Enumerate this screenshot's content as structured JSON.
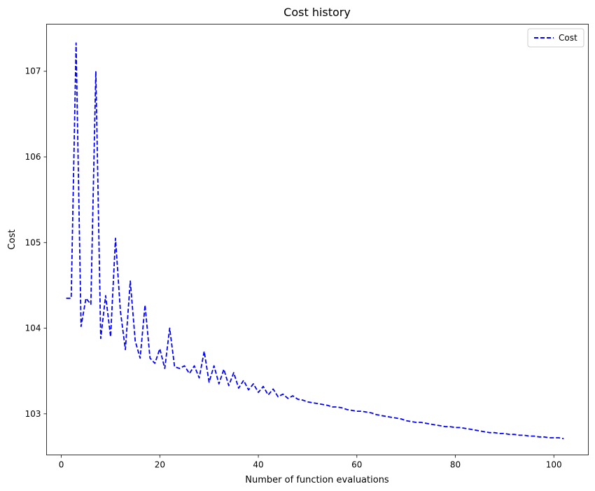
{
  "chart_data": {
    "type": "line",
    "title": "Cost history",
    "xlabel": "Number of function evaluations",
    "ylabel": "Cost",
    "xlim": [
      -3,
      107
    ],
    "ylim": [
      102.52,
      107.55
    ],
    "xticks": [
      0,
      20,
      40,
      60,
      80,
      100
    ],
    "yticks": [
      103,
      104,
      105,
      106,
      107
    ],
    "grid": false,
    "legend": {
      "placement": "top-right"
    },
    "series": [
      {
        "name": "Cost",
        "color": "#0000ff",
        "line_style": "dashed",
        "x": [
          1,
          2,
          3,
          4,
          5,
          6,
          7,
          8,
          9,
          10,
          11,
          12,
          13,
          14,
          15,
          16,
          17,
          18,
          19,
          20,
          21,
          22,
          23,
          24,
          25,
          26,
          27,
          28,
          29,
          30,
          31,
          32,
          33,
          34,
          35,
          36,
          37,
          38,
          39,
          40,
          41,
          42,
          43,
          44,
          45,
          46,
          47,
          48,
          49,
          50,
          51,
          52,
          53,
          54,
          55,
          56,
          57,
          58,
          59,
          60,
          61,
          62,
          63,
          64,
          65,
          66,
          67,
          68,
          69,
          70,
          71,
          72,
          73,
          74,
          75,
          76,
          77,
          78,
          79,
          80,
          81,
          82,
          83,
          84,
          85,
          86,
          87,
          88,
          89,
          90,
          91,
          92,
          93,
          94,
          95,
          96,
          97,
          98,
          99,
          100,
          101,
          102
        ],
        "y": [
          104.35,
          104.35,
          107.33,
          104.02,
          104.35,
          104.28,
          107.0,
          103.88,
          104.38,
          103.9,
          105.05,
          104.2,
          103.75,
          104.55,
          103.85,
          103.65,
          104.27,
          103.65,
          103.59,
          103.76,
          103.53,
          104.0,
          103.55,
          103.53,
          103.56,
          103.47,
          103.56,
          103.42,
          103.73,
          103.37,
          103.56,
          103.35,
          103.52,
          103.33,
          103.48,
          103.3,
          103.39,
          103.28,
          103.35,
          103.25,
          103.32,
          103.22,
          103.29,
          103.2,
          103.23,
          103.18,
          103.21,
          103.17,
          103.16,
          103.14,
          103.13,
          103.12,
          103.11,
          103.1,
          103.08,
          103.08,
          103.07,
          103.05,
          103.04,
          103.03,
          103.03,
          103.02,
          103.01,
          102.99,
          102.98,
          102.97,
          102.96,
          102.95,
          102.94,
          102.92,
          102.91,
          102.9,
          102.9,
          102.89,
          102.88,
          102.87,
          102.86,
          102.85,
          102.85,
          102.84,
          102.84,
          102.83,
          102.82,
          102.81,
          102.8,
          102.79,
          102.78,
          102.78,
          102.77,
          102.77,
          102.76,
          102.76,
          102.75,
          102.75,
          102.74,
          102.74,
          102.73,
          102.73,
          102.72,
          102.72,
          102.72,
          102.71
        ]
      }
    ]
  }
}
